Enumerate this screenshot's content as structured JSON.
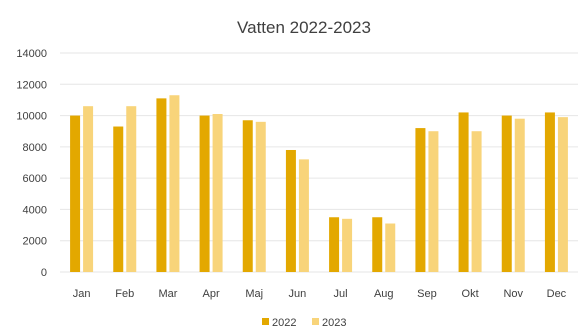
{
  "chart_data": {
    "type": "bar",
    "title": "Vatten 2022-2023",
    "categories": [
      "Jan",
      "Feb",
      "Mar",
      "Apr",
      "Maj",
      "Jun",
      "Jul",
      "Aug",
      "Sep",
      "Okt",
      "Nov",
      "Dec"
    ],
    "series": [
      {
        "name": "2022",
        "values": [
          10000,
          9300,
          11100,
          10000,
          9700,
          7800,
          3500,
          3500,
          9200,
          10200,
          10000,
          10200
        ],
        "color": "#E3A800"
      },
      {
        "name": "2023",
        "values": [
          10600,
          10600,
          11300,
          10100,
          9600,
          7200,
          3400,
          3100,
          9000,
          9000,
          9800,
          9900
        ],
        "color": "#F8D47A"
      }
    ],
    "ylim": [
      0,
      14000
    ],
    "yticks": [
      "0",
      "2000",
      "4000",
      "6000",
      "8000",
      "10000",
      "12000",
      "14000"
    ],
    "grid": true,
    "legend": "bottom",
    "gridColor": "#e6e6e6",
    "textColor": "#404040"
  }
}
